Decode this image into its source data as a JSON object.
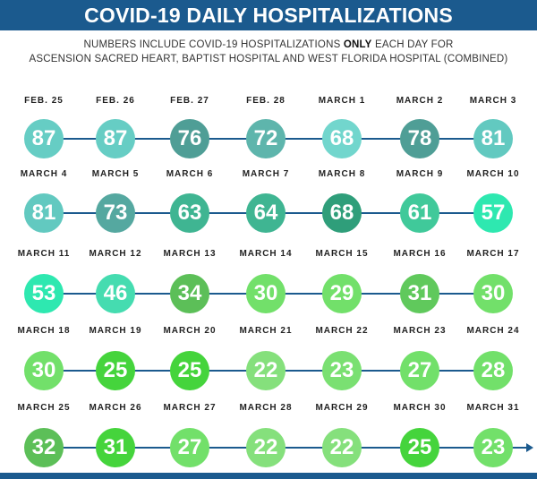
{
  "header": {
    "title": "COVID-19 DAILY HOSPITALIZATIONS"
  },
  "subtitle": {
    "line1_before": "NUMBERS INCLUDE COVID-19 HOSPITALIZATIONS ",
    "line1_bold": "ONLY",
    "line1_after": " EACH DAY FOR",
    "line2": "ASCENSION SACRED HEART, BAPTIST HOSPITAL AND WEST FLORIDA HOSPITAL (COMBINED)"
  },
  "colors": {
    "line": "#1b5a8e",
    "header": "#1b5a8e"
  },
  "chart_data": {
    "type": "timeline",
    "title": "COVID-19 DAILY HOSPITALIZATIONS",
    "rows": [
      {
        "dates": [
          "FEB. 25",
          "FEB. 26",
          "FEB. 27",
          "FEB. 28",
          "MARCH 1",
          "MARCH 2",
          "MARCH 3"
        ],
        "values": [
          "87",
          "87",
          "76",
          "72",
          "68",
          "78",
          "81"
        ],
        "colors": [
          "#66cdc4",
          "#66cdc4",
          "#4f9e96",
          "#5eb5ac",
          "#72d6cd",
          "#4f9e96",
          "#62c9c0"
        ]
      },
      {
        "dates": [
          "MARCH 4",
          "MARCH 5",
          "MARCH 6",
          "MARCH 7",
          "MARCH 8",
          "MARCH 9",
          "MARCH 10"
        ],
        "values": [
          "81",
          "73",
          "63",
          "64",
          "68",
          "61",
          "57"
        ],
        "colors": [
          "#62c9c0",
          "#55a8a0",
          "#3fb592",
          "#3fb592",
          "#2f9e7a",
          "#40c99a",
          "#2ee8b0"
        ]
      },
      {
        "dates": [
          "MARCH 11",
          "MARCH 12",
          "MARCH 13",
          "MARCH 14",
          "MARCH 15",
          "MARCH 16",
          "MARCH 17"
        ],
        "values": [
          "53",
          "46",
          "34",
          "30",
          "29",
          "31",
          "30"
        ],
        "colors": [
          "#2ee8b0",
          "#45dcb0",
          "#5cbf58",
          "#72e06a",
          "#72e06a",
          "#60c95c",
          "#72e06a"
        ]
      },
      {
        "dates": [
          "MARCH 18",
          "MARCH 19",
          "MARCH 20",
          "MARCH 21",
          "MARCH 22",
          "MARCH 23",
          "MARCH 24"
        ],
        "values": [
          "30",
          "25",
          "25",
          "22",
          "23",
          "27",
          "28"
        ],
        "colors": [
          "#72e06a",
          "#45d43c",
          "#45d43c",
          "#85e07c",
          "#7ae072",
          "#72e06a",
          "#72e06a"
        ]
      },
      {
        "dates": [
          "MARCH 25",
          "MARCH 26",
          "MARCH 27",
          "MARCH 28",
          "MARCH 29",
          "MARCH 30",
          "MARCH 31"
        ],
        "values": [
          "32",
          "31",
          "27",
          "22",
          "22",
          "25",
          "23"
        ],
        "colors": [
          "#5cbf58",
          "#45d43c",
          "#72e06a",
          "#85e07c",
          "#85e07c",
          "#45d43c",
          "#72e06a"
        ]
      }
    ]
  }
}
